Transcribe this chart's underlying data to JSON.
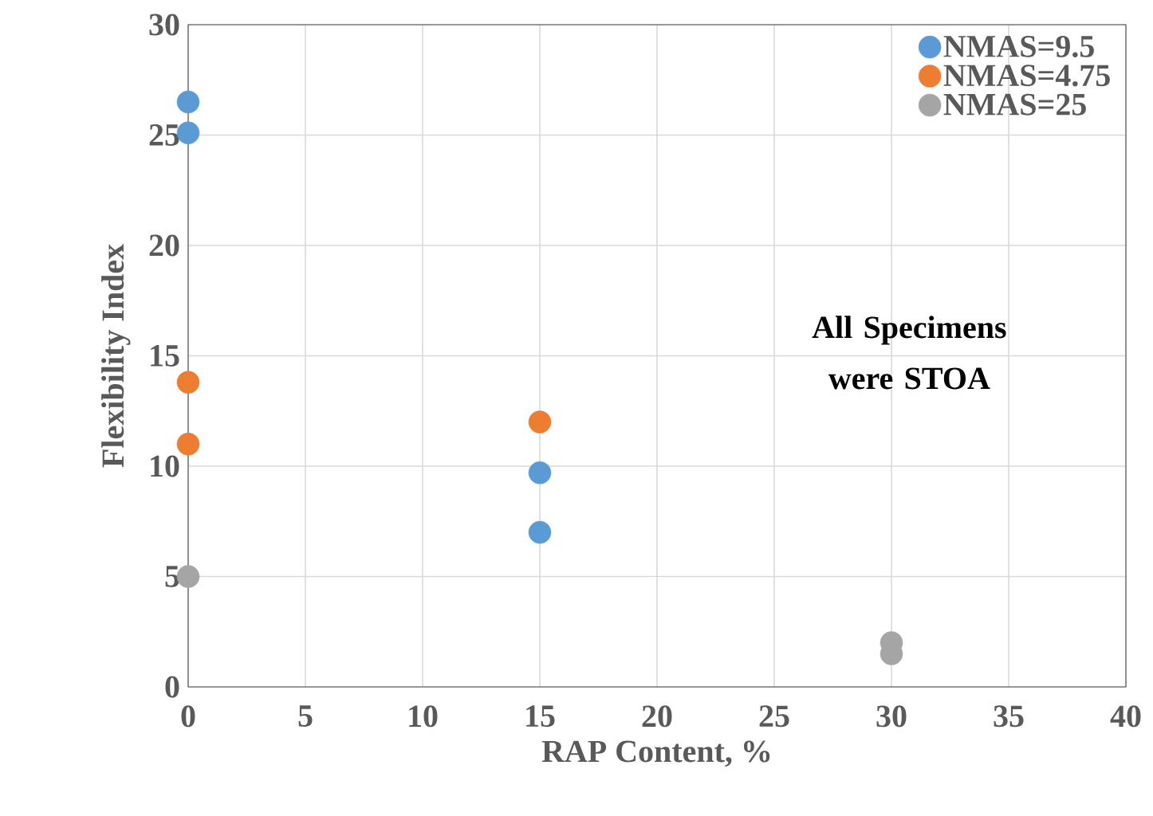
{
  "chart_data": {
    "type": "scatter",
    "xlabel": "RAP Content, %",
    "ylabel": "Flexibility Index",
    "xlim": [
      0,
      40
    ],
    "ylim": [
      0,
      30
    ],
    "xticks": [
      0,
      5,
      10,
      15,
      20,
      25,
      30,
      35,
      40
    ],
    "yticks": [
      0,
      5,
      10,
      15,
      20,
      25,
      30
    ],
    "grid": true,
    "legend": "top right",
    "marker": "circle",
    "annotations": [
      "All Specimens were STOA"
    ],
    "series": [
      {
        "name": "NMAS=9.5",
        "color": "#5b9bd5",
        "x": [
          0,
          0,
          15,
          15
        ],
        "values": [
          26.5,
          25.1,
          9.7,
          7.0
        ]
      },
      {
        "name": "NMAS=4.75",
        "color": "#ed7d31",
        "x": [
          0,
          0,
          15
        ],
        "values": [
          13.8,
          11.0,
          12.0
        ]
      },
      {
        "name": "NMAS=25",
        "color": "#a5a5a5",
        "x": [
          0,
          30,
          30
        ],
        "values": [
          5.0,
          2.0,
          1.5
        ]
      }
    ]
  }
}
